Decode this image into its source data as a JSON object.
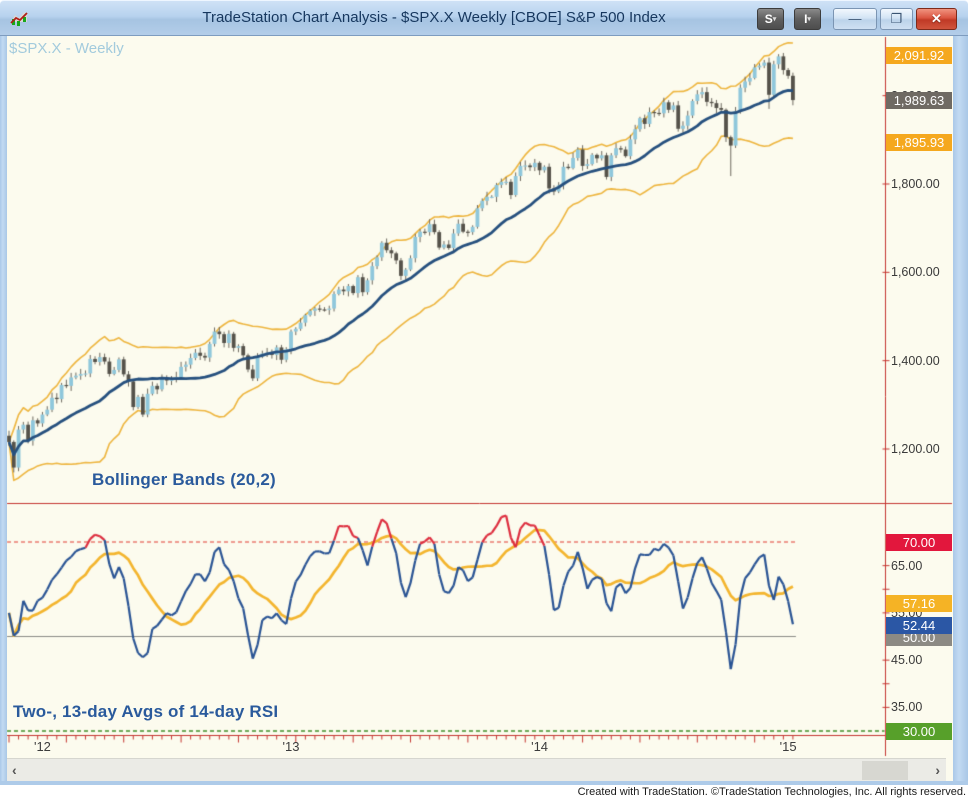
{
  "window": {
    "title": "TradeStation Chart Analysis - $SPX.X Weekly [CBOE] S&P 500 Index",
    "s_button_label": "S",
    "i_button_label": "I",
    "minimize_glyph": "—",
    "maximize_glyph": "❐",
    "close_glyph": "✕",
    "status_bar": "Created with TradeStation. ©TradeStation Technologies, Inc. All rights reserved."
  },
  "chart": {
    "symbol_label": "$SPX.X - Weekly",
    "bollinger_label": "Bollinger Bands (20,2)",
    "rsi_label": "Two-, 13-day Avgs of 14-day RSI",
    "price_axis": {
      "plain_labels": [
        {
          "value": 2000,
          "text": "2,000.00"
        },
        {
          "value": 1800,
          "text": "1,800.00"
        },
        {
          "value": 1600,
          "text": "1,600.00"
        },
        {
          "value": 1400,
          "text": "1,400.00"
        },
        {
          "value": 1200,
          "text": "1,200.00"
        }
      ],
      "badges": [
        {
          "value": 2091.92,
          "text": "2,091.92",
          "color": "#F5A81E",
          "name": "upper-band-badge"
        },
        {
          "value": 1989.63,
          "text": "1,989.63",
          "color": "#6F6A63",
          "name": "last-price-badge"
        },
        {
          "value": 1895.93,
          "text": "1,895.93",
          "color": "#F5A81E",
          "name": "lower-band-badge"
        }
      ]
    },
    "rsi_axis": {
      "plain_labels": [
        {
          "value": 65,
          "text": "65.00"
        },
        {
          "value": 55,
          "text": "55.00"
        },
        {
          "value": 45,
          "text": "45.00"
        },
        {
          "value": 35,
          "text": "35.00"
        }
      ],
      "tick_values": [
        65,
        60,
        55,
        45,
        40,
        35
      ],
      "badges": [
        {
          "value": 70,
          "text": "70.00",
          "color": "#E2173D",
          "name": "rsi-70-badge"
        },
        {
          "value": 57.16,
          "text": "57.16",
          "color": "#F5B325",
          "name": "rsi-slow-badge"
        },
        {
          "value": 50,
          "text": "50.00",
          "color": "#8C8A84",
          "name": "rsi-50-badge"
        },
        {
          "value": 52.44,
          "text": "52.44",
          "color": "#2B57A5",
          "name": "rsi-fast-badge"
        },
        {
          "value": 30,
          "text": "30.00",
          "color": "#57A02A",
          "name": "rsi-30-badge"
        }
      ]
    },
    "x_axis": {
      "year_labels": [
        {
          "text": "'12",
          "bar_index": 7
        },
        {
          "text": "'13",
          "bar_index": 59
        },
        {
          "text": "'14",
          "bar_index": 111
        },
        {
          "text": "'15",
          "bar_index": 163
        }
      ]
    },
    "scrollbar": {
      "left_arrow": "‹",
      "right_arrow": "›"
    }
  },
  "chart_data": {
    "type": "candlestick",
    "title": "$SPX.X Weekly with Bollinger Bands (20,2) and Two-/13-day Avgs of 14-day RSI",
    "x_range_years": [
      "2011-12",
      "2015-01"
    ],
    "price_ylim": [
      1080,
      2130
    ],
    "rsi_ylim": [
      27,
      77
    ],
    "rsi_levels": {
      "overbought": 70,
      "mid": 50,
      "oversold": 30
    },
    "last_values": {
      "close": 1989.63,
      "bb_upper": 2091.92,
      "bb_lower": 1895.93,
      "rsi_fast": 52.44,
      "rsi_slow": 57.16
    },
    "weekly_closes": [
      1216,
      1158,
      1244,
      1255,
      1219,
      1265,
      1258,
      1278,
      1289,
      1316,
      1313,
      1345,
      1343,
      1362,
      1366,
      1370,
      1371,
      1404,
      1397,
      1408,
      1398,
      1370,
      1379,
      1403,
      1369,
      1353,
      1295,
      1318,
      1278,
      1325,
      1343,
      1335,
      1362,
      1355,
      1357,
      1363,
      1386,
      1391,
      1406,
      1418,
      1411,
      1407,
      1438,
      1466,
      1460,
      1440,
      1461,
      1429,
      1433,
      1412,
      1380,
      1360,
      1409,
      1416,
      1418,
      1413,
      1430,
      1402,
      1426,
      1466,
      1472,
      1486,
      1503,
      1513,
      1518,
      1516,
      1515,
      1518,
      1551,
      1561,
      1557,
      1569,
      1553,
      1589,
      1555,
      1582,
      1614,
      1634,
      1667,
      1650,
      1643,
      1627,
      1592,
      1606,
      1632,
      1680,
      1692,
      1691,
      1709,
      1691,
      1656,
      1663,
      1655,
      1688,
      1710,
      1692,
      1691,
      1703,
      1745,
      1762,
      1771,
      1771,
      1798,
      1805,
      1805,
      1775,
      1818,
      1841,
      1842,
      1838,
      1848,
      1831,
      1839,
      1790,
      1783,
      1797,
      1839,
      1836,
      1859,
      1878,
      1841,
      1845,
      1866,
      1858,
      1865,
      1816,
      1865,
      1881,
      1878,
      1863,
      1901,
      1924,
      1949,
      1936,
      1963,
      1961,
      1960,
      1985,
      1968,
      1978,
      1925,
      1932,
      1955,
      1988,
      2003,
      2008,
      1986,
      1983,
      1972,
      1968,
      1906,
      1887,
      1965,
      2018,
      2032,
      2040,
      2064,
      2068,
      2075,
      2002,
      2071,
      2089,
      2058,
      2045,
      1990
    ],
    "low_overrides": {
      "1": 1147,
      "151": 1818,
      "159": 1970
    },
    "high_overrides": {
      "161": 2094
    },
    "indicator_params": {
      "bollinger_length": 20,
      "bollinger_stdev": 2,
      "rsi_length": 14,
      "rsi_avg_fast": 2,
      "rsi_avg_slow": 13
    }
  },
  "colors": {
    "background": "#FCFBEE",
    "candle_up": "#8FC7DB",
    "candle_down": "#55524A",
    "wick": "#6E6A60",
    "bollinger_mid": "#26507E",
    "bollinger_band": "#EDB53F",
    "rsi_fast": "#2A5494",
    "rsi_slow": "#F3B52F",
    "rsi_overbought_segment": "#DD2E3F",
    "level_70_dash": "#E03A30",
    "level_50_line": "#8A8A84",
    "level_30_dash": "#3F8F28",
    "axis_red": "#C53530",
    "axis_text": "#3A3A3A"
  }
}
